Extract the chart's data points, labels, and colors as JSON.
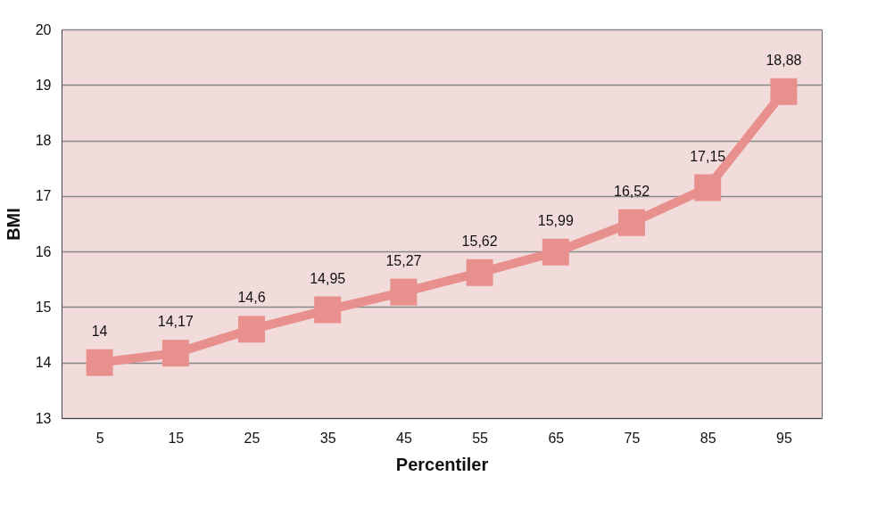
{
  "chart_data": {
    "type": "line",
    "xlabel": "Percentiler",
    "ylabel": "BMI",
    "categories": [
      "5",
      "15",
      "25",
      "35",
      "45",
      "55",
      "65",
      "75",
      "85",
      "95"
    ],
    "series": [
      {
        "color": "#e8908e",
        "values": [
          14,
          14.17,
          14.6,
          14.95,
          15.27,
          15.62,
          15.99,
          16.52,
          17.15,
          18.88
        ]
      }
    ],
    "value_labels": [
      "14",
      "14,17",
      "14,6",
      "14,95",
      "15,27",
      "15,62",
      "15,99",
      "16,52",
      "17,15",
      "18,88"
    ],
    "ylim": [
      13,
      20
    ],
    "yticks": [
      13,
      14,
      15,
      16,
      17,
      18,
      19,
      20
    ],
    "grid": "y",
    "marker": "square",
    "line_style": "solid"
  }
}
